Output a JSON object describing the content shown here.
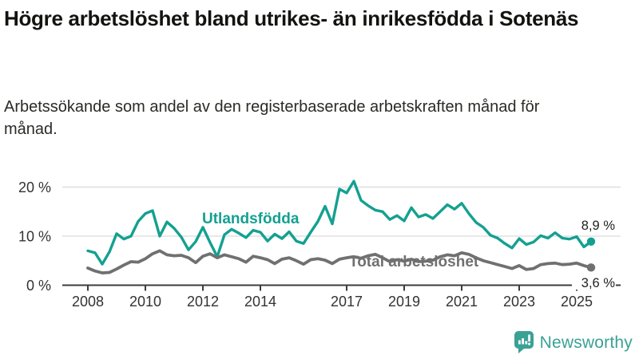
{
  "header": {
    "title": "Högre arbetslöshet bland utrikes- än inrikesfödda i Sotenäs",
    "subtitle": "Arbetssökande som andel av den registerbaserade arbetskraften månad för månad."
  },
  "chart_data": {
    "type": "line",
    "title": "Högre arbetslöshet bland utrikes- än inrikesfödda i Sotenäs",
    "unit": "%",
    "grid": "horizontal",
    "legend_position": "inline-labels",
    "ylim": [
      0,
      22
    ],
    "x_range": [
      2008,
      2025.5
    ],
    "x_ticks": [
      "2008",
      "2010",
      "2012",
      "2014",
      "2017",
      "2019",
      "2021",
      "2023",
      "2025"
    ],
    "x_tick_values": [
      2008,
      2010,
      2012,
      2014,
      2017,
      2019,
      2021,
      2023,
      2025
    ],
    "y_ticks": [
      {
        "value": 0,
        "label": "0 %"
      },
      {
        "value": 10,
        "label": "10 %"
      },
      {
        "value": 20,
        "label": "20 %"
      }
    ],
    "x": [
      2008,
      2008.25,
      2008.5,
      2008.75,
      2009,
      2009.25,
      2009.5,
      2009.75,
      2010,
      2010.25,
      2010.5,
      2010.75,
      2011,
      2011.25,
      2011.5,
      2011.75,
      2012,
      2012.25,
      2012.5,
      2012.75,
      2013,
      2013.25,
      2013.5,
      2013.75,
      2014,
      2014.25,
      2014.5,
      2014.75,
      2015,
      2015.25,
      2015.5,
      2015.75,
      2016,
      2016.25,
      2016.5,
      2016.75,
      2017,
      2017.25,
      2017.5,
      2017.75,
      2018,
      2018.25,
      2018.5,
      2018.75,
      2019,
      2019.25,
      2019.5,
      2019.75,
      2020,
      2020.25,
      2020.5,
      2020.75,
      2021,
      2021.25,
      2021.5,
      2021.75,
      2022,
      2022.25,
      2022.5,
      2022.75,
      2023,
      2023.25,
      2023.5,
      2023.75,
      2024,
      2024.25,
      2024.5,
      2024.75,
      2025,
      2025.25,
      2025.5
    ],
    "series": [
      {
        "name": "Utlandsfödda",
        "color": "#14a091",
        "end_label": "8,9 %",
        "end_value": 8.9,
        "values": [
          7.0,
          6.6,
          4.3,
          6.8,
          10.5,
          9.4,
          10.0,
          13.0,
          14.6,
          15.2,
          10.0,
          12.9,
          11.6,
          9.8,
          7.2,
          8.9,
          11.8,
          8.7,
          5.8,
          10.3,
          11.4,
          10.6,
          9.7,
          11.2,
          10.8,
          9.0,
          10.4,
          9.5,
          10.9,
          9.0,
          8.5,
          10.8,
          13.0,
          16.1,
          12.5,
          19.6,
          18.8,
          21.2,
          17.3,
          16.2,
          15.3,
          15.0,
          13.4,
          14.2,
          13.1,
          15.8,
          13.9,
          14.4,
          13.6,
          15.0,
          16.4,
          15.5,
          16.7,
          14.6,
          12.8,
          11.8,
          10.2,
          9.6,
          8.5,
          7.6,
          9.5,
          8.3,
          8.8,
          10.1,
          9.6,
          10.7,
          9.6,
          9.4,
          9.9,
          7.8,
          8.9
        ]
      },
      {
        "name": "Total arbetslöshet",
        "color": "#707070",
        "end_label": "3,6 %",
        "end_value": 3.6,
        "values": [
          3.5,
          2.9,
          2.5,
          2.6,
          3.3,
          4.1,
          4.8,
          4.7,
          5.4,
          6.4,
          7.0,
          6.2,
          6.0,
          6.1,
          5.6,
          4.6,
          5.9,
          6.4,
          5.6,
          6.2,
          5.8,
          5.4,
          4.7,
          5.9,
          5.6,
          5.2,
          4.4,
          5.3,
          5.6,
          5.0,
          4.3,
          5.2,
          5.4,
          5.1,
          4.4,
          5.3,
          5.6,
          5.8,
          5.5,
          6.0,
          6.3,
          5.6,
          4.8,
          5.2,
          4.9,
          5.3,
          4.8,
          4.9,
          5.1,
          5.8,
          6.2,
          6.0,
          6.6,
          6.3,
          5.6,
          5.0,
          4.6,
          4.2,
          3.8,
          3.4,
          4.0,
          3.2,
          3.4,
          4.2,
          4.4,
          4.5,
          4.2,
          4.3,
          4.5,
          4.0,
          3.6
        ]
      }
    ]
  },
  "colors": {
    "accent_teal": "#14a091",
    "series_gray": "#707070",
    "axis": "#3c3c3c",
    "grid": "#dadada",
    "tick_text": "#333333",
    "value_label_text": "#1f1f1f",
    "brand_teal": "#3aa195"
  },
  "footer": {
    "brand": "Newsworthy"
  }
}
